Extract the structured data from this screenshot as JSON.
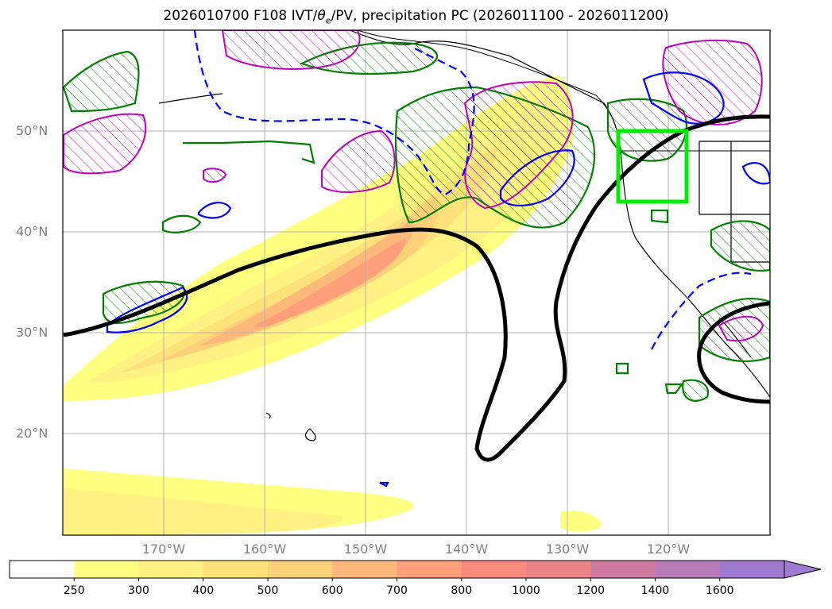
{
  "title": {
    "prefix": "2026010700 F108 IVT/",
    "theta": "θ",
    "theta_sub": "e",
    "suffix": "/PV, precipitation PC (2026011100 - 2026011200)"
  },
  "axes": {
    "lat_labels": [
      "50°N",
      "40°N",
      "30°N",
      "20°N"
    ],
    "lon_labels": [
      "170°W",
      "160°W",
      "150°W",
      "140°W",
      "130°W",
      "120°W"
    ]
  },
  "colorbar": {
    "ticks": [
      "250",
      "300",
      "400",
      "500",
      "600",
      "700",
      "800",
      "1000",
      "1200",
      "1400",
      "1600"
    ],
    "colors": [
      "#ffffff",
      "#ffff80",
      "#fff282",
      "#ffe17a",
      "#ffd07a",
      "#ffb87a",
      "#ffa07a",
      "#fb8a7d",
      "#ec8389",
      "#d07aa0",
      "#b87ab8",
      "#a07ad0"
    ]
  },
  "legend_colors": {
    "jet_contour": "#000000",
    "region_box": "#00ee00",
    "positive_contour": "#008000",
    "negative_contour": "#0000ff",
    "hatched_contour": "#c000c0"
  }
}
